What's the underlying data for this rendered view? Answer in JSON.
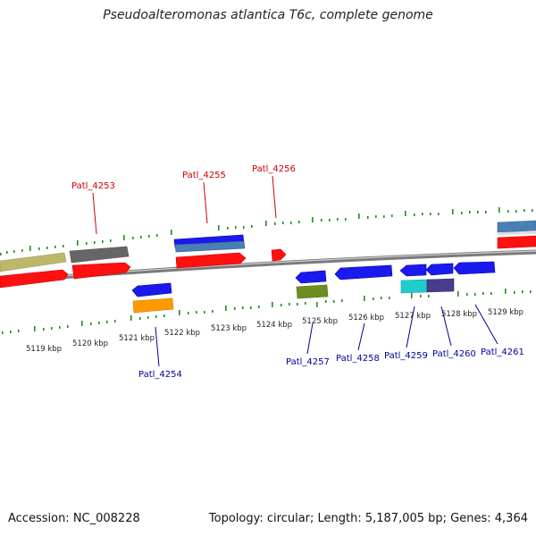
{
  "title": "Pseudoalteromonas atlantica T6c, complete genome",
  "footer": {
    "accession": "Accession: NC_008228",
    "summary": "Topology: circular; Length: 5,187,005 bp; Genes: 4,364"
  },
  "ticks": [
    "5119 kbp",
    "5120 kbp",
    "5121 kbp",
    "5122 kbp",
    "5123 kbp",
    "5124 kbp",
    "5125 kbp",
    "5126 kbp",
    "5127 kbp",
    "5128 kbp",
    "5129 kbp"
  ],
  "labels_top": [
    "Patl_4253",
    "Patl_4255",
    "Patl_4256"
  ],
  "labels_bottom": [
    "Patl_4254",
    "Patl_4257",
    "Patl_4258",
    "Patl_4259",
    "Patl_4260",
    "Patl_4261"
  ],
  "colors": {
    "forward_cds": "#ff0000",
    "reverse_cds": "#0000ee",
    "label_top": "#cc0000",
    "label_bottom": "#000099",
    "tick": "#228b22",
    "backbone": "#888888"
  }
}
